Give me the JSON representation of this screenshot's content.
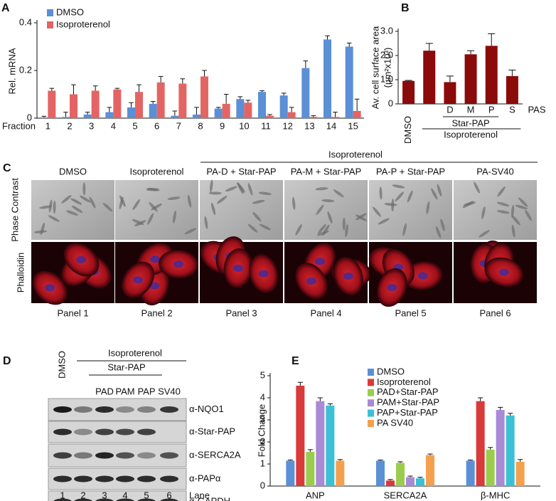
{
  "chart_data": [
    {
      "type": "bar",
      "panel_label": "A",
      "ylabel": "Rel. mRNA",
      "xlabel": "Fraction",
      "categories": [
        "1",
        "2",
        "3",
        "4",
        "5",
        "6",
        "7",
        "8",
        "9",
        "10",
        "11",
        "12",
        "13",
        "14",
        "15"
      ],
      "series": [
        {
          "name": "DMSO",
          "color": "#5b8fd6",
          "values": [
            0.003,
            0.005,
            0.015,
            0.025,
            0.045,
            0.06,
            0.01,
            0.015,
            0.04,
            0.08,
            0.11,
            0.095,
            0.21,
            0.33,
            0.3
          ],
          "errors": [
            0.005,
            0.02,
            0.01,
            0.02,
            0.02,
            0.01,
            0.02,
            0.03,
            0.005,
            0.01,
            0.005,
            0.01,
            0.03,
            0.015,
            0.015
          ]
        },
        {
          "name": "Isoproterenol",
          "color": "#e46464",
          "values": [
            0.115,
            0.1,
            0.115,
            0.12,
            0.11,
            0.15,
            0.145,
            0.175,
            0.06,
            0.065,
            0.01,
            0.025,
            0.005,
            0.005,
            0.03
          ],
          "errors": [
            0.01,
            0.04,
            0.02,
            0.005,
            0.03,
            0.025,
            0.02,
            0.025,
            0.04,
            0.01,
            0.005,
            0.02,
            0.005,
            0.02,
            0.05
          ]
        }
      ],
      "ylim": [
        0,
        0.4
      ],
      "yticks": [
        0,
        0.2,
        0.4
      ]
    },
    {
      "type": "bar",
      "panel_label": "B",
      "ylabel": "Av. cell surface area",
      "ylabel_units": "(µm²x10³)",
      "categories": [
        "DMSO",
        null,
        "D",
        "M",
        "P",
        "S"
      ],
      "values": [
        0.95,
        2.2,
        0.9,
        2.05,
        2.4,
        1.15
      ],
      "errors": [
        0.02,
        0.3,
        0.25,
        0.15,
        0.5,
        0.25
      ],
      "color": "#8b0a0a",
      "annotations": [
        "PAS",
        "Star-PAP",
        "Isoproterenol"
      ],
      "ylim": [
        0,
        3
      ],
      "yticks": [
        0,
        {
          "value": 1,
          "label": "1.0"
        },
        {
          "value": 2,
          "label": "2.0"
        },
        {
          "value": 3,
          "label": "3.0"
        }
      ]
    },
    {
      "type": "bar",
      "panel_label": "E",
      "ylabel": "Fold Change",
      "categories": [
        "ANP",
        "SERCA2A",
        "β-MHC"
      ],
      "series": [
        {
          "name": "DMSO",
          "color": "#5b8fd6",
          "values": [
            1.15,
            1.15,
            1.15
          ],
          "errors": [
            0.03,
            0.03,
            0.03
          ]
        },
        {
          "name": "Isoproterenol",
          "color": "#d93a3a",
          "values": [
            4.55,
            0.25,
            3.85
          ],
          "errors": [
            0.15,
            0.05,
            0.15
          ]
        },
        {
          "name": "PAD+Star-PAP",
          "color": "#9acd4e",
          "values": [
            1.55,
            1.05,
            1.65
          ],
          "errors": [
            0.1,
            0.05,
            0.1
          ]
        },
        {
          "name": "PAM+Star-PAP",
          "color": "#a98ad6",
          "values": [
            3.85,
            0.4,
            3.45
          ],
          "errors": [
            0.15,
            0.05,
            0.12
          ]
        },
        {
          "name": "PAP+Star-PAP",
          "color": "#3cc0d6",
          "values": [
            3.65,
            0.35,
            3.2
          ],
          "errors": [
            0.08,
            0.05,
            0.1
          ]
        },
        {
          "name": "PA SV40",
          "color": "#f5a04e",
          "values": [
            1.15,
            1.4,
            1.1
          ],
          "errors": [
            0.05,
            0.05,
            0.1
          ]
        }
      ],
      "ylim": [
        0,
        5
      ],
      "yticks": [
        0,
        1,
        2,
        3,
        4,
        5
      ]
    }
  ],
  "panel_c": {
    "panel_label": "C",
    "group_label": "Isoproterenol",
    "columns": [
      "DMSO",
      "Isoproterenol",
      "PA-D + Star-PAP",
      "PA-M + Star-PAP",
      "PA-P + Star-PAP",
      "PA-SV40"
    ],
    "rows": [
      "Phase Contrast",
      "Phalloidin"
    ],
    "panels": [
      "Panel 1",
      "Panel 2",
      "Panel 3",
      "Panel 4",
      "Panel 5",
      "Panel 6"
    ]
  },
  "panel_d": {
    "panel_label": "D",
    "control": "DMSO",
    "group_label": "Isoproterenol",
    "subgroup_label": "Star-PAP",
    "columns": [
      "PAD",
      "PAM",
      "PAP",
      "SV40"
    ],
    "rows": [
      "α-NQO1",
      "α-Star-PAP",
      "α-SERCA2A",
      "α-PAPα",
      "α-GAPDH"
    ],
    "lanes": [
      1,
      2,
      3,
      4,
      5,
      6
    ],
    "lane_label": "Lane"
  }
}
